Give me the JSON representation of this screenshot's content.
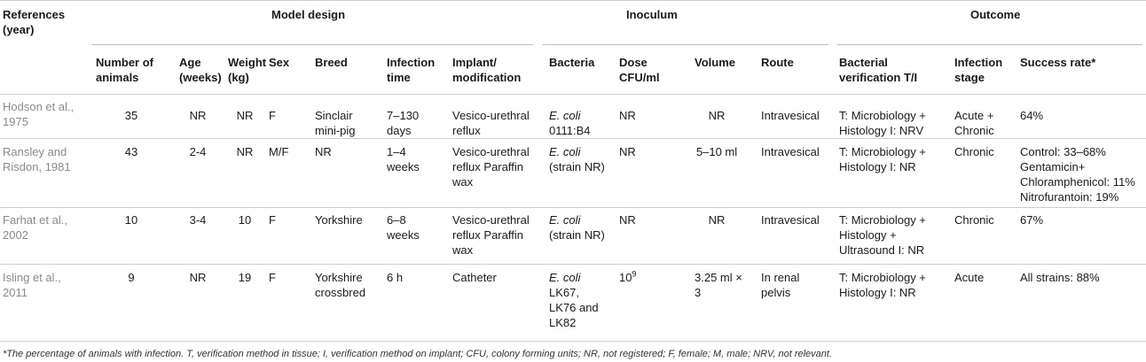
{
  "group_headers": {
    "references": [
      "References",
      "(year)"
    ],
    "model_design": "Model design",
    "inoculum": "Inoculum",
    "outcome": "Outcome"
  },
  "columns": {
    "num_animals": [
      "Number of",
      "animals"
    ],
    "age": [
      "Age",
      "(weeks)"
    ],
    "weight": [
      "Weight",
      "(kg)"
    ],
    "sex": "Sex",
    "breed": "Breed",
    "infection_time": [
      "Infection",
      "time"
    ],
    "implant": [
      "Implant/",
      "modification"
    ],
    "bacteria": "Bacteria",
    "dose": [
      "Dose",
      "CFU/ml"
    ],
    "volume": "Volume",
    "route": "Route",
    "verification": [
      "Bacterial",
      "verification T/I"
    ],
    "stage": [
      "Infection",
      "stage"
    ],
    "success": "Success rate*"
  },
  "rows": [
    {
      "ref": [
        "Hodson et al.,",
        "1975"
      ],
      "num": "35",
      "age": "NR",
      "weight": "NR",
      "sex": "F",
      "breed": [
        "Sinclair",
        "mini-pig"
      ],
      "time": [
        "7–130",
        "days"
      ],
      "implant": [
        "Vesico-urethral",
        "reflux"
      ],
      "bact_italic": "E. coli",
      "bacteria": [
        "0111:B4"
      ],
      "dose": "NR",
      "volume": "NR",
      "route": [
        "Intravesical"
      ],
      "verification": [
        "T: Microbiology +",
        "Histology I: NRV"
      ],
      "stage": [
        "Acute +",
        "Chronic"
      ],
      "success": [
        "64%"
      ]
    },
    {
      "ref": [
        "Ransley and",
        "Risdon, 1981"
      ],
      "num": "43",
      "age": "2-4",
      "weight": "NR",
      "sex": "M/F",
      "breed": [
        "NR"
      ],
      "time": [
        "1–4",
        "weeks"
      ],
      "implant": [
        "Vesico-urethral",
        "reflux Paraffin",
        "wax"
      ],
      "bact_italic": "E. coli",
      "bacteria": [
        "(strain NR)"
      ],
      "dose": "NR",
      "volume": "5–10 ml",
      "route": [
        "Intravesical"
      ],
      "verification": [
        "T: Microbiology +",
        "Histology I: NR"
      ],
      "stage": [
        "Chronic"
      ],
      "success": [
        "Control: 33–68%",
        "Gentamicin+",
        "Chloramphenicol: 11%",
        "Nitrofurantoin: 19%"
      ]
    },
    {
      "ref": [
        "Farhat et al.,",
        "2002"
      ],
      "num": "10",
      "age": "3-4",
      "weight": "10",
      "sex": "F",
      "breed": [
        "Yorkshire"
      ],
      "time": [
        "6–8",
        "weeks"
      ],
      "implant": [
        "Vesico-urethral",
        "reflux Paraffin",
        "wax"
      ],
      "bact_italic": "E. coli",
      "bacteria": [
        "(strain NR)"
      ],
      "dose": "NR",
      "volume": "NR",
      "route": [
        "Intravesical"
      ],
      "verification": [
        "T: Microbiology +",
        "Histology +",
        "Ultrasound I: NR"
      ],
      "stage": [
        "Chronic"
      ],
      "success": [
        "67%"
      ]
    },
    {
      "ref": [
        "Isling et al.,",
        "2011"
      ],
      "num": "9",
      "age": "NR",
      "weight": "19",
      "sex": "F",
      "breed": [
        "Yorkshire",
        "crossbred"
      ],
      "time": [
        "6 h"
      ],
      "implant": [
        "Catheter"
      ],
      "bact_italic": "E. coli",
      "bacteria": [
        "LK67,",
        "LK76 and",
        "LK82"
      ],
      "dose_base": "10",
      "dose_sup": "9",
      "volume_lines": [
        "3.25 ml ×",
        "3"
      ],
      "route": [
        "In renal",
        "pelvis"
      ],
      "verification": [
        "T: Microbiology +",
        "Histology I: NR"
      ],
      "stage": [
        "Acute"
      ],
      "success": [
        "All strains: 88%"
      ]
    }
  ],
  "footnote": "*The percentage of animals with infection. T, verification method in tissue; I, verification method on implant; CFU, colony forming units; NR, not registered; F, female; M, male; NRV, not relevant."
}
